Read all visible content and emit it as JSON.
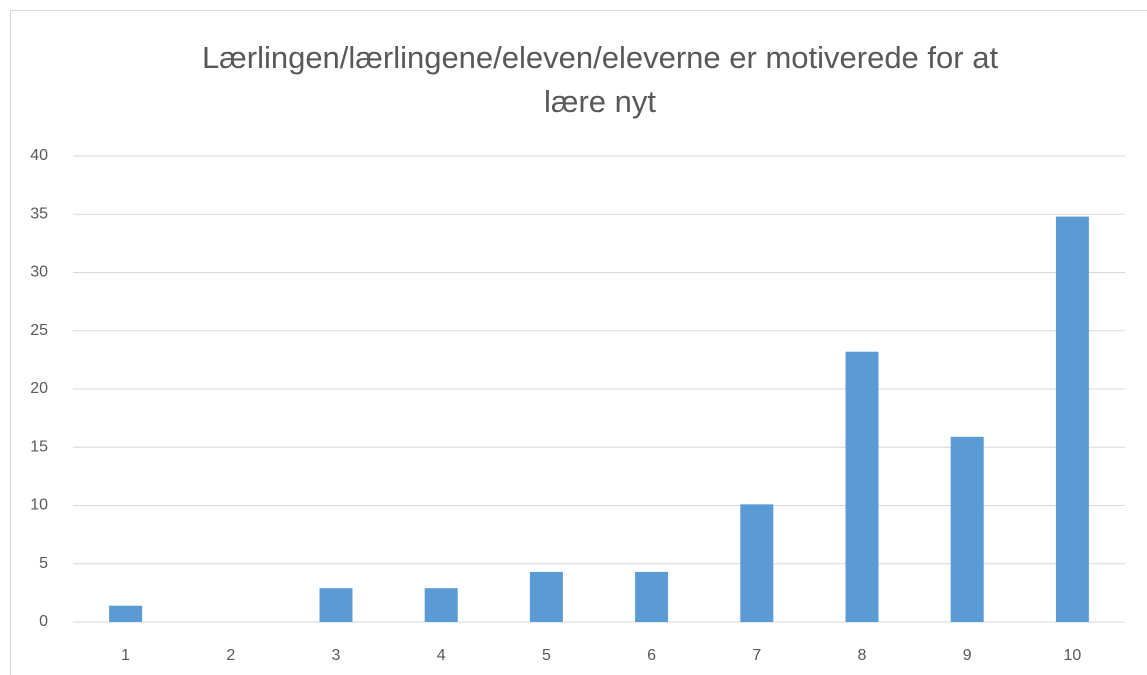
{
  "chart_data": {
    "type": "bar",
    "title": "Lærlingen/lærlingene/eleven/eleverne er motiverede for at lære nyt",
    "categories": [
      "1",
      "2",
      "3",
      "4",
      "5",
      "6",
      "7",
      "8",
      "9",
      "10"
    ],
    "values": [
      1.4,
      0,
      2.9,
      2.9,
      4.3,
      4.3,
      10.1,
      23.2,
      15.9,
      34.8
    ],
    "color": "#5b9bd5",
    "ylim": [
      0,
      40
    ],
    "yticks": [
      0,
      5,
      10,
      15,
      20,
      25,
      30,
      35,
      40
    ],
    "grid": true
  }
}
